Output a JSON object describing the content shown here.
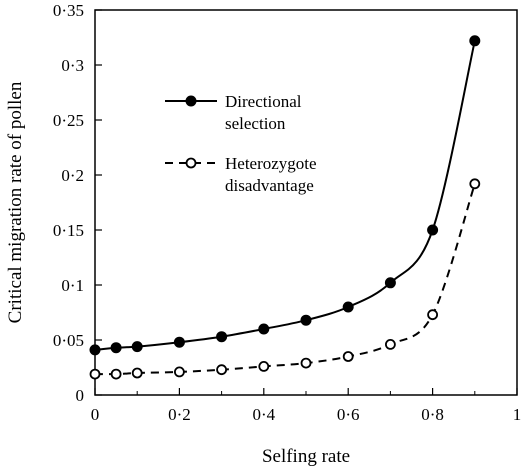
{
  "chart_data": {
    "type": "line",
    "xlabel": "Selfing rate",
    "ylabel": "Critical migration rate of pollen",
    "xlim": [
      0,
      1
    ],
    "ylim": [
      0,
      0.35
    ],
    "x_ticks": [
      {
        "value": 0,
        "label": "0"
      },
      {
        "value": 0.2,
        "label": "0·2"
      },
      {
        "value": 0.4,
        "label": "0·4"
      },
      {
        "value": 0.6,
        "label": "0·6"
      },
      {
        "value": 0.8,
        "label": "0·8"
      },
      {
        "value": 1,
        "label": "1"
      }
    ],
    "y_ticks": [
      {
        "value": 0,
        "label": "0"
      },
      {
        "value": 0.05,
        "label": "0·05"
      },
      {
        "value": 0.1,
        "label": "0·1"
      },
      {
        "value": 0.15,
        "label": "0·15"
      },
      {
        "value": 0.2,
        "label": "0·2"
      },
      {
        "value": 0.25,
        "label": "0·25"
      },
      {
        "value": 0.3,
        "label": "0·3"
      },
      {
        "value": 0.35,
        "label": "0·35"
      }
    ],
    "grid": false,
    "legend_position": "upper-left",
    "series": [
      {
        "name_lines": [
          "Directional",
          "selection"
        ],
        "line_style": "solid",
        "marker": "filled-circle",
        "x": [
          0,
          0.05,
          0.1,
          0.2,
          0.3,
          0.4,
          0.5,
          0.6,
          0.7,
          0.8,
          0.9
        ],
        "y": [
          0.041,
          0.043,
          0.044,
          0.048,
          0.053,
          0.06,
          0.068,
          0.08,
          0.102,
          0.15,
          0.322
        ]
      },
      {
        "name_lines": [
          "Heterozygote",
          "disadvantage"
        ],
        "line_style": "dashed",
        "marker": "open-circle",
        "x": [
          0,
          0.05,
          0.1,
          0.2,
          0.3,
          0.4,
          0.5,
          0.6,
          0.7,
          0.8,
          0.9
        ],
        "y": [
          0.019,
          0.019,
          0.02,
          0.021,
          0.023,
          0.026,
          0.029,
          0.035,
          0.046,
          0.073,
          0.192
        ]
      }
    ]
  }
}
